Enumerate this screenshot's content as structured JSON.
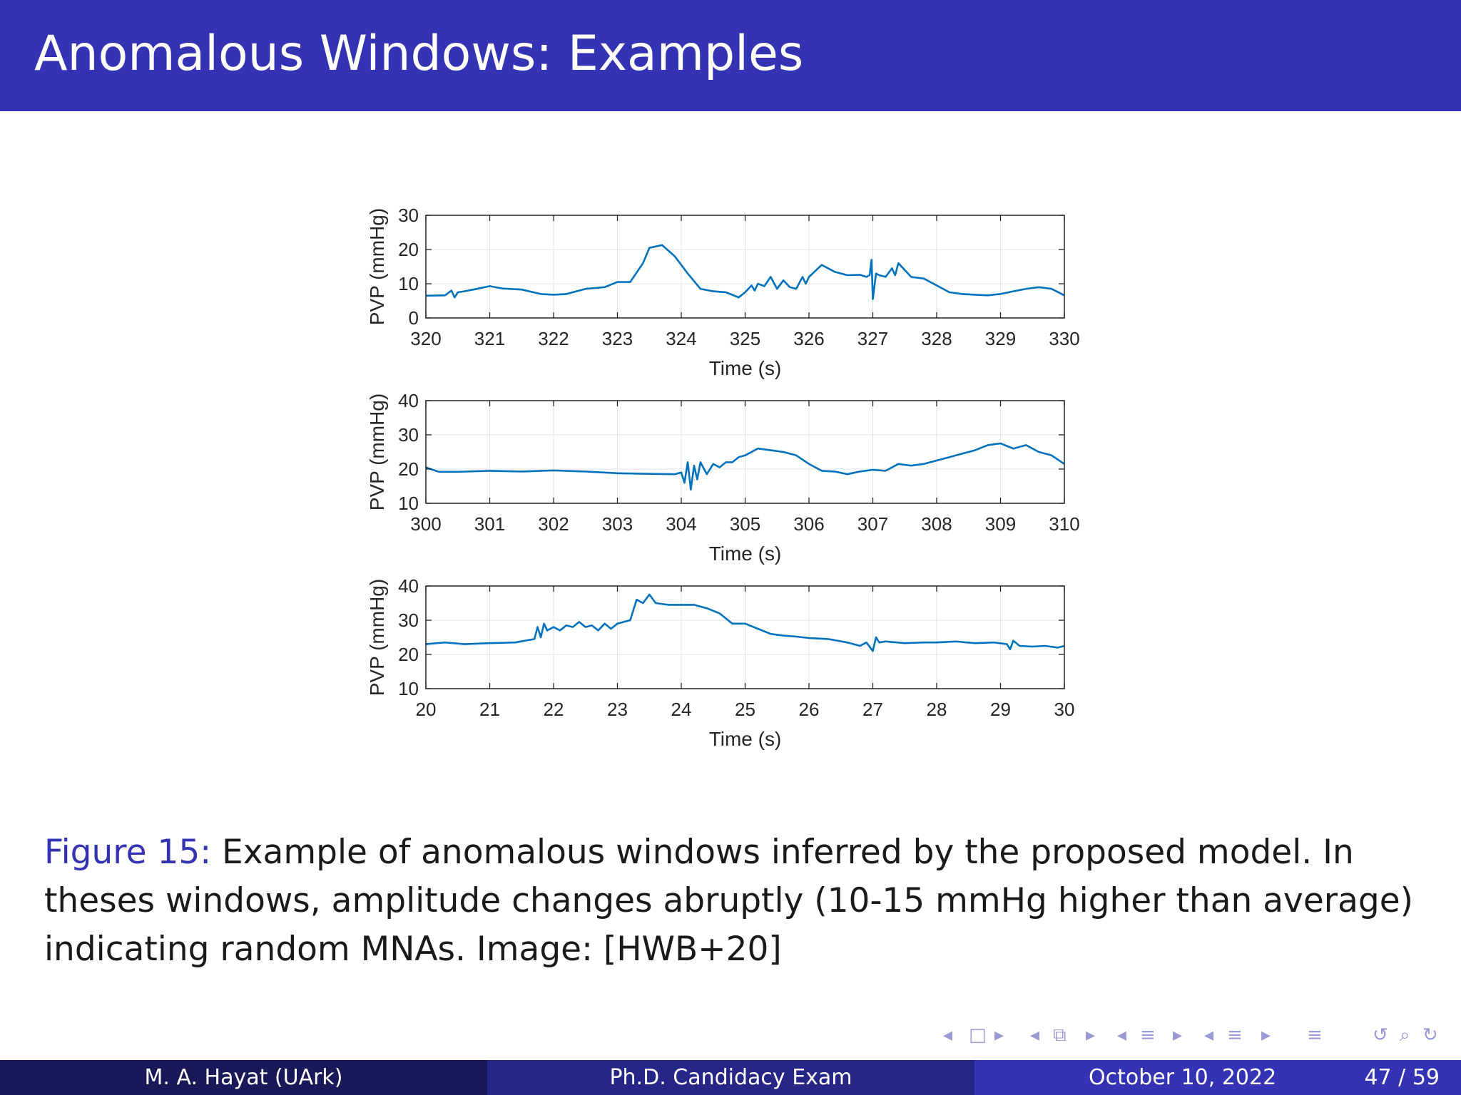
{
  "slide": {
    "title": "Anomalous Windows: Examples",
    "caption_label": "Figure 15:",
    "caption_text": " Example of anomalous windows inferred by the proposed model. In theses windows, amplitude changes abruptly (10-15 mmHg higher than average) indicating random MNAs. Image: [HWB+20]"
  },
  "footer": {
    "author": "M. A. Hayat  (UArk)",
    "talk": "Ph.D. Candidacy Exam",
    "date": "October 10, 2022",
    "page": "47 / 59"
  },
  "nav_icons": [
    "nav-prev-frame-icon",
    "nav-frame-icon",
    "nav-next-frame-icon",
    "nav-prev-subsection-icon",
    "nav-subsection-icon",
    "nav-next-subsection-icon",
    "nav-prev-section-icon",
    "nav-section-icon",
    "nav-next-section-icon",
    "nav-prev-slide-icon",
    "nav-slide-icon",
    "nav-next-slide-icon",
    "nav-toc-icon",
    "nav-back-icon",
    "nav-search-icon"
  ],
  "colors": {
    "line": "#0072bd",
    "title_bar": "#3333b3",
    "caption_label": "#3333b3"
  },
  "chart_data": [
    {
      "type": "line",
      "xlabel": "Time (s)",
      "ylabel": "PVP (mmHg)",
      "xlim": [
        320,
        330
      ],
      "ylim": [
        0,
        30
      ],
      "xticks": [
        320,
        321,
        322,
        323,
        324,
        325,
        326,
        327,
        328,
        329,
        330
      ],
      "yticks": [
        0,
        10,
        20,
        30
      ],
      "grid": true,
      "series": [
        {
          "x": [
            320,
            320.3,
            320.4,
            320.45,
            320.5,
            320.6,
            320.8,
            321.0,
            321.2,
            321.5,
            321.8,
            322.0,
            322.2,
            322.5,
            322.8,
            323.0,
            323.2,
            323.4,
            323.5,
            323.7,
            323.9,
            324.1,
            324.3,
            324.5,
            324.7,
            324.9,
            325.0,
            325.1,
            325.15,
            325.2,
            325.3,
            325.4,
            325.5,
            325.6,
            325.7,
            325.8,
            325.9,
            325.95,
            326.0,
            326.2,
            326.4,
            326.6,
            326.8,
            326.9,
            326.95,
            326.98,
            327.0,
            327.05,
            327.1,
            327.2,
            327.3,
            327.35,
            327.4,
            327.5,
            327.6,
            327.8,
            328.0,
            328.2,
            328.4,
            328.6,
            328.8,
            329.0,
            329.2,
            329.4,
            329.6,
            329.8,
            330.0
          ],
          "y": [
            6.5,
            6.6,
            8,
            6,
            7.5,
            7.8,
            8.5,
            9.3,
            8.6,
            8.3,
            7.0,
            6.8,
            7.0,
            8.5,
            9.0,
            10.5,
            10.5,
            16,
            20.5,
            21.3,
            18,
            13,
            8.5,
            7.8,
            7.5,
            6.0,
            7.5,
            9.5,
            8.0,
            10.0,
            9.3,
            12,
            8.5,
            11,
            9,
            8.5,
            12,
            10,
            12,
            15.5,
            13.5,
            12.5,
            12.6,
            12.0,
            12.5,
            17,
            5.5,
            13,
            12.5,
            12.0,
            14.5,
            12.5,
            16,
            14,
            12.0,
            11.5,
            9.5,
            7.5,
            7.0,
            6.8,
            6.6,
            7.0,
            7.8,
            8.5,
            9.0,
            8.5,
            6.6
          ]
        }
      ]
    },
    {
      "type": "line",
      "xlabel": "Time (s)",
      "ylabel": "PVP (mmHg)",
      "xlim": [
        300,
        310
      ],
      "ylim": [
        10,
        40
      ],
      "xticks": [
        300,
        301,
        302,
        303,
        304,
        305,
        306,
        307,
        308,
        309,
        310
      ],
      "yticks": [
        10,
        20,
        30,
        40
      ],
      "grid": true,
      "series": [
        {
          "x": [
            300,
            300.2,
            300.5,
            301,
            301.5,
            302,
            302.5,
            303,
            303.5,
            303.9,
            304.0,
            304.05,
            304.1,
            304.15,
            304.2,
            304.25,
            304.3,
            304.4,
            304.5,
            304.6,
            304.7,
            304.8,
            304.9,
            305.0,
            305.2,
            305.4,
            305.6,
            305.8,
            306.0,
            306.2,
            306.4,
            306.6,
            306.8,
            307.0,
            307.2,
            307.4,
            307.6,
            307.8,
            308.0,
            308.2,
            308.4,
            308.6,
            308.8,
            309.0,
            309.2,
            309.4,
            309.6,
            309.8,
            310.0
          ],
          "y": [
            20.5,
            19.2,
            19.2,
            19.5,
            19.3,
            19.6,
            19.3,
            18.8,
            18.6,
            18.5,
            19,
            16,
            22,
            14,
            21,
            17,
            22,
            18.5,
            21.5,
            20.5,
            22,
            22,
            23.5,
            24,
            26,
            25.5,
            25,
            24,
            21.5,
            19.5,
            19.3,
            18.5,
            19.3,
            19.8,
            19.5,
            21.5,
            21,
            21.5,
            22.5,
            23.5,
            24.5,
            25.5,
            27,
            27.5,
            26,
            27,
            25,
            24,
            21.5
          ]
        }
      ]
    },
    {
      "type": "line",
      "xlabel": "Time (s)",
      "ylabel": "PVP (mmHg)",
      "xlim": [
        20,
        30
      ],
      "ylim": [
        10,
        40
      ],
      "xticks": [
        20,
        21,
        22,
        23,
        24,
        25,
        26,
        27,
        28,
        29,
        30
      ],
      "yticks": [
        10,
        20,
        30,
        40
      ],
      "grid": true,
      "series": [
        {
          "x": [
            20,
            20.3,
            20.6,
            21.0,
            21.4,
            21.7,
            21.75,
            21.8,
            21.85,
            21.9,
            22.0,
            22.1,
            22.2,
            22.3,
            22.4,
            22.5,
            22.6,
            22.7,
            22.8,
            22.9,
            23.0,
            23.2,
            23.3,
            23.4,
            23.5,
            23.6,
            23.8,
            24.0,
            24.2,
            24.4,
            24.6,
            24.8,
            25.0,
            25.2,
            25.4,
            25.6,
            25.8,
            26.0,
            26.3,
            26.6,
            26.8,
            26.9,
            27.0,
            27.05,
            27.1,
            27.2,
            27.5,
            27.8,
            28.0,
            28.3,
            28.6,
            28.9,
            29.1,
            29.15,
            29.2,
            29.3,
            29.5,
            29.7,
            29.9,
            30.0
          ],
          "y": [
            23,
            23.5,
            23.0,
            23.3,
            23.5,
            24.5,
            28,
            25,
            29,
            27,
            28,
            27,
            28.5,
            28,
            29.5,
            28,
            28.5,
            27,
            29,
            27.5,
            29,
            30,
            36,
            35,
            37.5,
            35,
            34.5,
            34.5,
            34.5,
            33.5,
            32,
            29,
            29,
            27.5,
            26,
            25.5,
            25.2,
            24.8,
            24.5,
            23.5,
            22.5,
            23.5,
            21,
            25,
            23.5,
            23.8,
            23.3,
            23.5,
            23.5,
            23.8,
            23.3,
            23.5,
            23.0,
            21.5,
            24,
            22.5,
            22.3,
            22.5,
            22.0,
            22.5
          ]
        }
      ]
    }
  ]
}
